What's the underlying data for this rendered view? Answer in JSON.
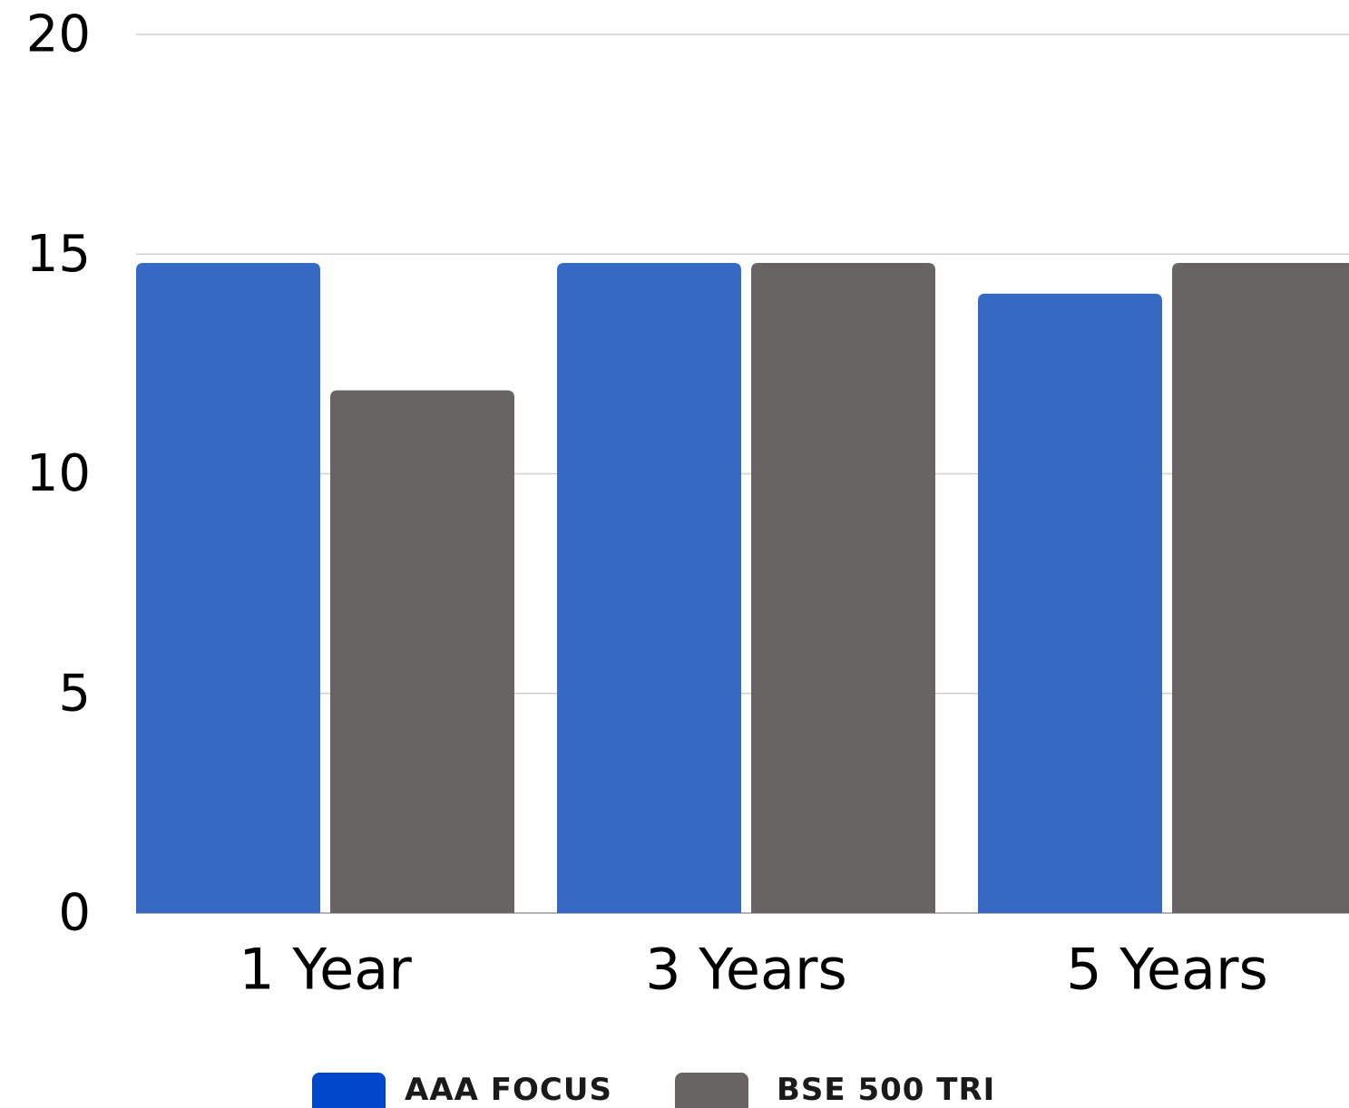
{
  "chart_data": {
    "type": "bar",
    "categories": [
      "1 Year",
      "3 Years",
      "5 Years"
    ],
    "series": [
      {
        "name": "AAA FOCUS",
        "values": [
          14.8,
          14.8,
          14.1
        ],
        "color": "#3569c4",
        "legend_color": "#0047cc"
      },
      {
        "name": "BSE 500 TRI",
        "values": [
          11.9,
          14.8,
          14.8
        ],
        "color": "#676463",
        "legend_color": "#676463"
      }
    ],
    "yticks": [
      "0",
      "5",
      "10",
      "15",
      "20"
    ],
    "ylim": [
      0,
      20
    ],
    "grid": true,
    "legend": "bottom-center"
  }
}
